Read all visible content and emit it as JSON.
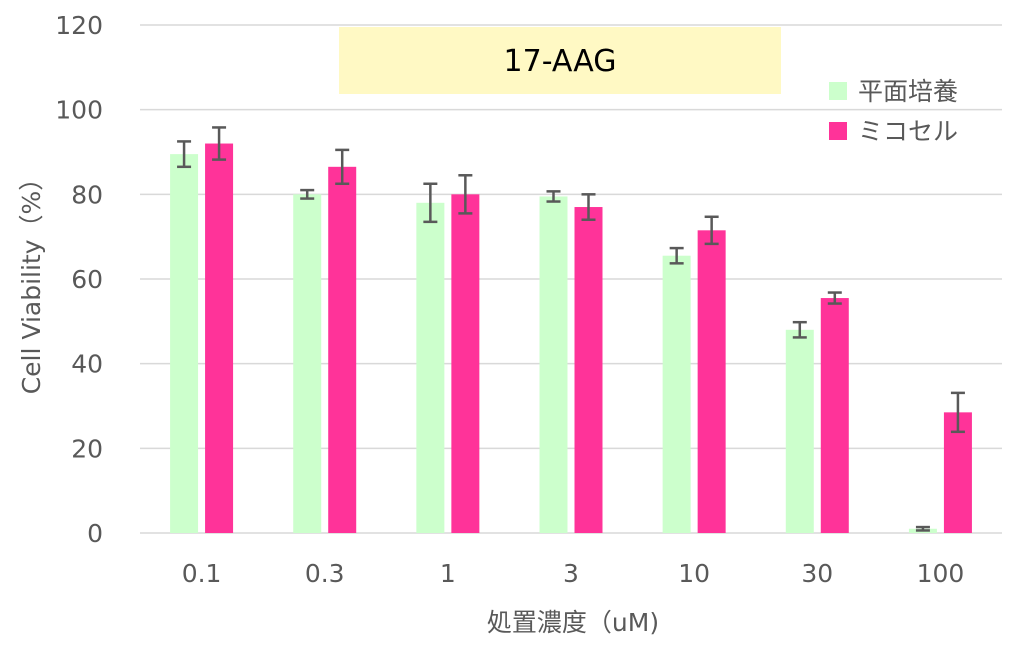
{
  "chart_data": {
    "type": "bar",
    "annotation": "17-AAG",
    "xlabel": "処置濃度（uM)",
    "ylabel": "Cell Viability（%）",
    "ylim": [
      0,
      120
    ],
    "yticks": [
      "0",
      "20",
      "40",
      "60",
      "80",
      "100",
      "120"
    ],
    "categories": [
      "0.1",
      "0.3",
      "1",
      "3",
      "10",
      "30",
      "100"
    ],
    "series": [
      {
        "name": "平面培養",
        "color": "#ccffcc",
        "values": [
          89.5,
          80,
          78,
          79.5,
          65.5,
          48,
          1
        ],
        "errors": [
          3,
          1,
          4.5,
          1.2,
          1.8,
          1.8,
          0.4
        ]
      },
      {
        "name": "ミコセル",
        "color": "#ff3399",
        "values": [
          92,
          86.5,
          80,
          77,
          71.5,
          55.5,
          28.5
        ],
        "errors": [
          3.8,
          4,
          4.5,
          3,
          3.2,
          1.3,
          4.6
        ]
      }
    ],
    "legend_position": "top-right",
    "grid": true,
    "annotation_color": "#fff9c4"
  }
}
